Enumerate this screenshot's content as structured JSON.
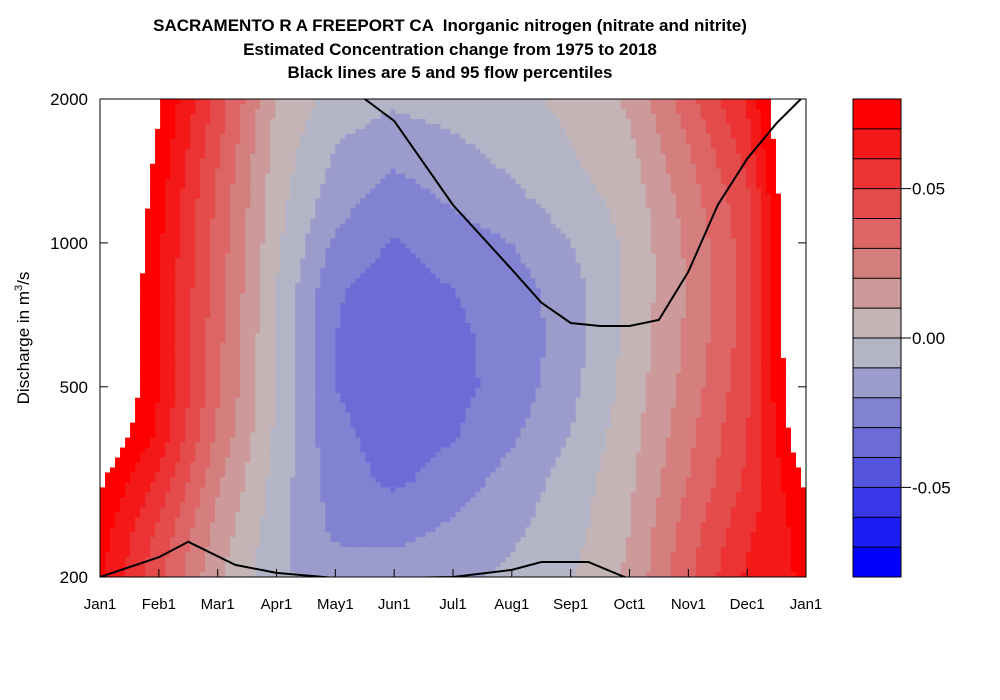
{
  "chart_data": {
    "type": "heatmap",
    "title_lines": [
      "SACRAMENTO R A FREEPORT CA  Inorganic nitrogen (nitrate and nitrite)",
      "Estimated Concentration change from 1975 to 2018",
      "Black lines are 5 and 95 flow percentiles"
    ],
    "ylabel": {
      "main": "Discharge in m",
      "sup": "3",
      "tail": "/s"
    },
    "y_scale": "log",
    "ylim": [
      200,
      2000
    ],
    "y_ticks": [
      {
        "value": 200,
        "label": "200"
      },
      {
        "value": 500,
        "label": "500"
      },
      {
        "value": 1000,
        "label": "1000"
      },
      {
        "value": 2000,
        "label": "2000"
      }
    ],
    "xlim": [
      0,
      12
    ],
    "x_ticks": [
      "Jan1",
      "Feb1",
      "Mar1",
      "Apr1",
      "May1",
      "Jun1",
      "Jul1",
      "Aug1",
      "Sep1",
      "Oct1",
      "Nov1",
      "Dec1",
      "Jan1"
    ],
    "colorbar": {
      "range": [
        -0.08,
        0.08
      ],
      "step": 0.01,
      "colors": [
        "#0000ff",
        "#1c1cf4",
        "#3838ea",
        "#5454df",
        "#6c6cd7",
        "#8282d3",
        "#9c9ccc",
        "#b4b4c7",
        "#c4b4b6",
        "#cc9a9a",
        "#d57e7e",
        "#dd6565",
        "#e44c4c",
        "#ec3232",
        "#f41818",
        "#ff0000"
      ],
      "ticks": [
        {
          "value": 0.05,
          "label": "0.05"
        },
        {
          "value": 0,
          "label": "0.00"
        },
        {
          "value": -0.05,
          "label": "-0.05"
        }
      ]
    },
    "flow_percentile_5": {
      "x": [
        0,
        1,
        1.5,
        2.3,
        3,
        4,
        5,
        6,
        7,
        7.5,
        8.3,
        9
      ],
      "y": [
        200,
        220,
        237,
        212,
        204,
        199,
        199,
        200,
        207,
        215,
        215,
        198
      ]
    },
    "flow_percentile_95": {
      "x": [
        4,
        4.5,
        5,
        6,
        7,
        7.5,
        8,
        8.5,
        9,
        9.5,
        10,
        10.5,
        11,
        11.5,
        12
      ],
      "y": [
        2300,
        2000,
        1800,
        1200,
        880,
        750,
        680,
        670,
        670,
        690,
        870,
        1200,
        1500,
        1780,
        2050
      ]
    },
    "concentration_change_grid": {
      "months": [
        0,
        1,
        2,
        3,
        4,
        5,
        6,
        7,
        8,
        9,
        10,
        11,
        12
      ],
      "discharge": [
        200,
        250,
        320,
        400,
        500,
        630,
        800,
        1000,
        1260,
        1600,
        2000
      ],
      "values": [
        [
          0.072,
          0.042,
          0.012,
          -0.008,
          -0.015,
          -0.014,
          -0.012,
          -0.008,
          -0.001,
          0.012,
          0.038,
          0.062,
          0.072
        ],
        [
          0.075,
          0.048,
          0.016,
          -0.006,
          -0.022,
          -0.024,
          -0.018,
          -0.012,
          -0.004,
          0.01,
          0.035,
          0.058,
          0.075
        ],
        [
          0.082,
          0.058,
          0.022,
          -0.004,
          -0.026,
          -0.032,
          -0.026,
          -0.016,
          -0.006,
          0.008,
          0.03,
          0.052,
          0.082
        ],
        [
          0.092,
          0.068,
          0.028,
          -0.002,
          -0.028,
          -0.034,
          -0.031,
          -0.022,
          -0.01,
          0.006,
          0.027,
          0.05,
          0.092
        ],
        [
          0.1,
          0.07,
          0.032,
          -0.001,
          -0.03,
          -0.035,
          -0.033,
          -0.026,
          -0.013,
          0.004,
          0.024,
          0.047,
          0.1
        ],
        [
          0.102,
          0.07,
          0.033,
          -0.001,
          -0.03,
          -0.036,
          -0.032,
          -0.027,
          -0.015,
          0.003,
          0.022,
          0.045,
          0.102
        ],
        [
          0.104,
          0.07,
          0.035,
          0.0,
          -0.029,
          -0.035,
          -0.03,
          -0.025,
          -0.014,
          0.002,
          0.021,
          0.044,
          0.104
        ],
        [
          0.106,
          0.072,
          0.036,
          0.002,
          -0.022,
          -0.031,
          -0.025,
          -0.02,
          -0.01,
          0.002,
          0.022,
          0.045,
          0.106
        ],
        [
          0.108,
          0.074,
          0.038,
          0.004,
          -0.015,
          -0.024,
          -0.018,
          -0.012,
          -0.004,
          0.004,
          0.025,
          0.048,
          0.108
        ],
        [
          0.11,
          0.078,
          0.042,
          0.006,
          -0.01,
          -0.016,
          -0.012,
          -0.006,
          0.0,
          0.008,
          0.03,
          0.055,
          0.11
        ],
        [
          0.112,
          0.082,
          0.046,
          0.009,
          -0.004,
          -0.008,
          -0.005,
          -0.002,
          0.002,
          0.012,
          0.036,
          0.062,
          0.112
        ]
      ]
    }
  }
}
